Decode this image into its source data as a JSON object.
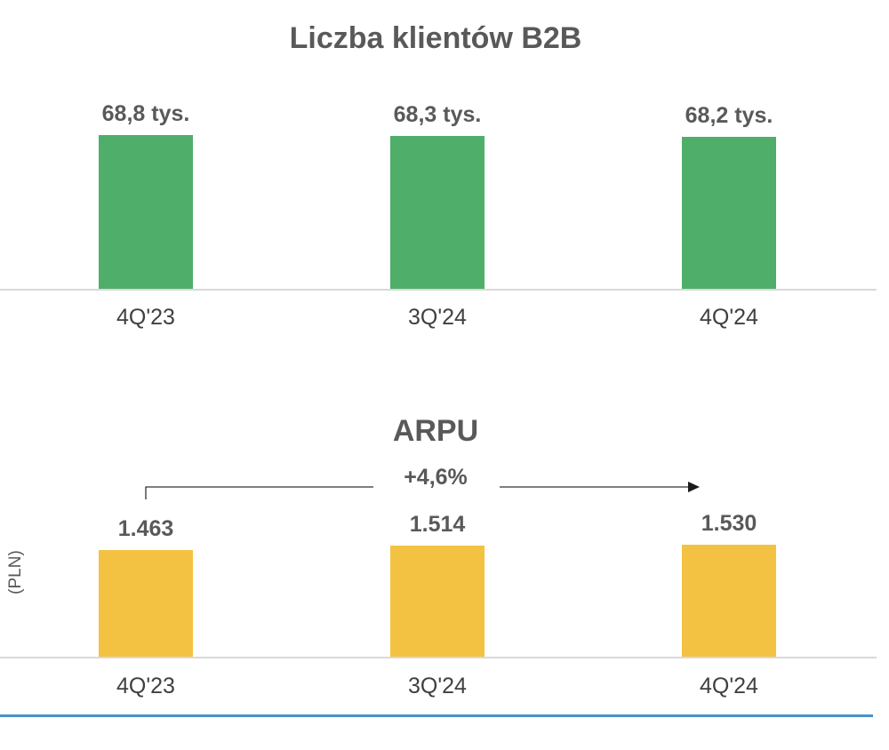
{
  "chart_data": [
    {
      "type": "bar",
      "title": "Liczba klientów B2B",
      "categories": [
        "4Q'23",
        "3Q'24",
        "4Q'24"
      ],
      "values": [
        68.8,
        68.3,
        68.2
      ],
      "value_labels": [
        "68,8 tys.",
        "68,3 tys.",
        "68,2 tys."
      ],
      "bar_color": "#4fae6a",
      "ylim": [
        0,
        70
      ],
      "grid": false,
      "xlabel": "",
      "ylabel": ""
    },
    {
      "type": "bar",
      "title": "ARPU",
      "categories": [
        "4Q'23",
        "3Q'24",
        "4Q'24"
      ],
      "values": [
        1463,
        1514,
        1530
      ],
      "value_labels": [
        "1.463",
        "1.514",
        "1.530"
      ],
      "bar_color": "#f4c242",
      "ylabel": "(PLN)",
      "annotation": "+4,6%",
      "ylim": [
        0,
        1700
      ],
      "grid": false,
      "xlabel": ""
    }
  ],
  "colors": {
    "divider": "#4a90c8",
    "axis": "#d9d9d9"
  }
}
